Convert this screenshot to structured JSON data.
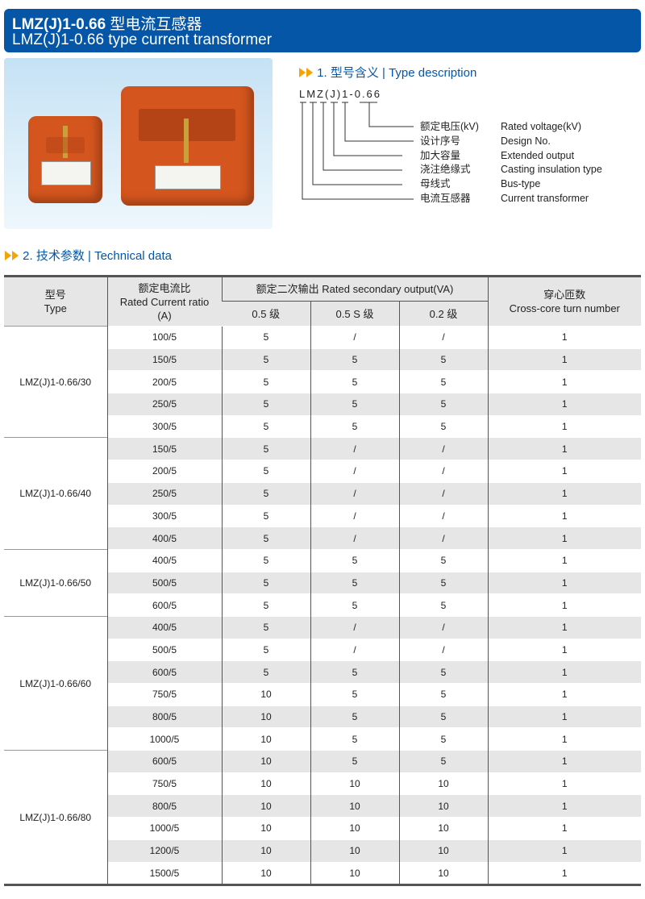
{
  "header": {
    "title_bold": "LMZ(J)1-0.66",
    "title_cn": "型电流互感器",
    "subtitle": "LMZ(J)1-0.66 type current transformer"
  },
  "section1": {
    "title": "1.  型号含义 | Type description",
    "code": "LMZ(J)1-0.66",
    "items": [
      {
        "cn": "额定电压(kV)",
        "en": "Rated voltage(kV)"
      },
      {
        "cn": "设计序号",
        "en": "Design No."
      },
      {
        "cn": "加大容量",
        "en": "Extended output"
      },
      {
        "cn": "浇注绝缘式",
        "en": "Casting insulation type"
      },
      {
        "cn": "母线式",
        "en": "Bus-type"
      },
      {
        "cn": "电流互感器",
        "en": "Current transformer"
      }
    ]
  },
  "section2": {
    "title": "2.  技术参数 | Technical data"
  },
  "colors": {
    "brand": "#0556a6",
    "accent": "#f5a300",
    "product": "#d4551e"
  },
  "table": {
    "headers": {
      "type_cn": "型号",
      "type_en": "Type",
      "ratio_cn": "额定电流比",
      "ratio_en": "Rated Current ratio",
      "ratio_unit": "(A)",
      "output": "额定二次输出 Rated secondary output(VA)",
      "c05": "0.5 级",
      "c05s": "0.5 S 级",
      "c02": "0.2 级",
      "turns_cn": "穿心匝数",
      "turns_en": "Cross-core turn number"
    },
    "groups": [
      {
        "type": "LMZ(J)1-0.66/30",
        "rows": [
          [
            "100/5",
            "5",
            "/",
            "/",
            "1"
          ],
          [
            "150/5",
            "5",
            "5",
            "5",
            "1"
          ],
          [
            "200/5",
            "5",
            "5",
            "5",
            "1"
          ],
          [
            "250/5",
            "5",
            "5",
            "5",
            "1"
          ],
          [
            "300/5",
            "5",
            "5",
            "5",
            "1"
          ]
        ]
      },
      {
        "type": "LMZ(J)1-0.66/40",
        "rows": [
          [
            "150/5",
            "5",
            "/",
            "/",
            "1"
          ],
          [
            "200/5",
            "5",
            "/",
            "/",
            "1"
          ],
          [
            "250/5",
            "5",
            "/",
            "/",
            "1"
          ],
          [
            "300/5",
            "5",
            "/",
            "/",
            "1"
          ],
          [
            "400/5",
            "5",
            "/",
            "/",
            "1"
          ]
        ]
      },
      {
        "type": "LMZ(J)1-0.66/50",
        "rows": [
          [
            "400/5",
            "5",
            "5",
            "5",
            "1"
          ],
          [
            "500/5",
            "5",
            "5",
            "5",
            "1"
          ],
          [
            "600/5",
            "5",
            "5",
            "5",
            "1"
          ]
        ]
      },
      {
        "type": "LMZ(J)1-0.66/60",
        "rows": [
          [
            "400/5",
            "5",
            "/",
            "/",
            "1"
          ],
          [
            "500/5",
            "5",
            "/",
            "/",
            "1"
          ],
          [
            "600/5",
            "5",
            "5",
            "5",
            "1"
          ],
          [
            "750/5",
            "10",
            "5",
            "5",
            "1"
          ],
          [
            "800/5",
            "10",
            "5",
            "5",
            "1"
          ],
          [
            "1000/5",
            "10",
            "5",
            "5",
            "1"
          ]
        ]
      },
      {
        "type": "LMZ(J)1-0.66/80",
        "rows": [
          [
            "600/5",
            "10",
            "5",
            "5",
            "1"
          ],
          [
            "750/5",
            "10",
            "10",
            "10",
            "1"
          ],
          [
            "800/5",
            "10",
            "10",
            "10",
            "1"
          ],
          [
            "1000/5",
            "10",
            "10",
            "10",
            "1"
          ],
          [
            "1200/5",
            "10",
            "10",
            "10",
            "1"
          ],
          [
            "1500/5",
            "10",
            "10",
            "10",
            "1"
          ]
        ]
      }
    ]
  }
}
